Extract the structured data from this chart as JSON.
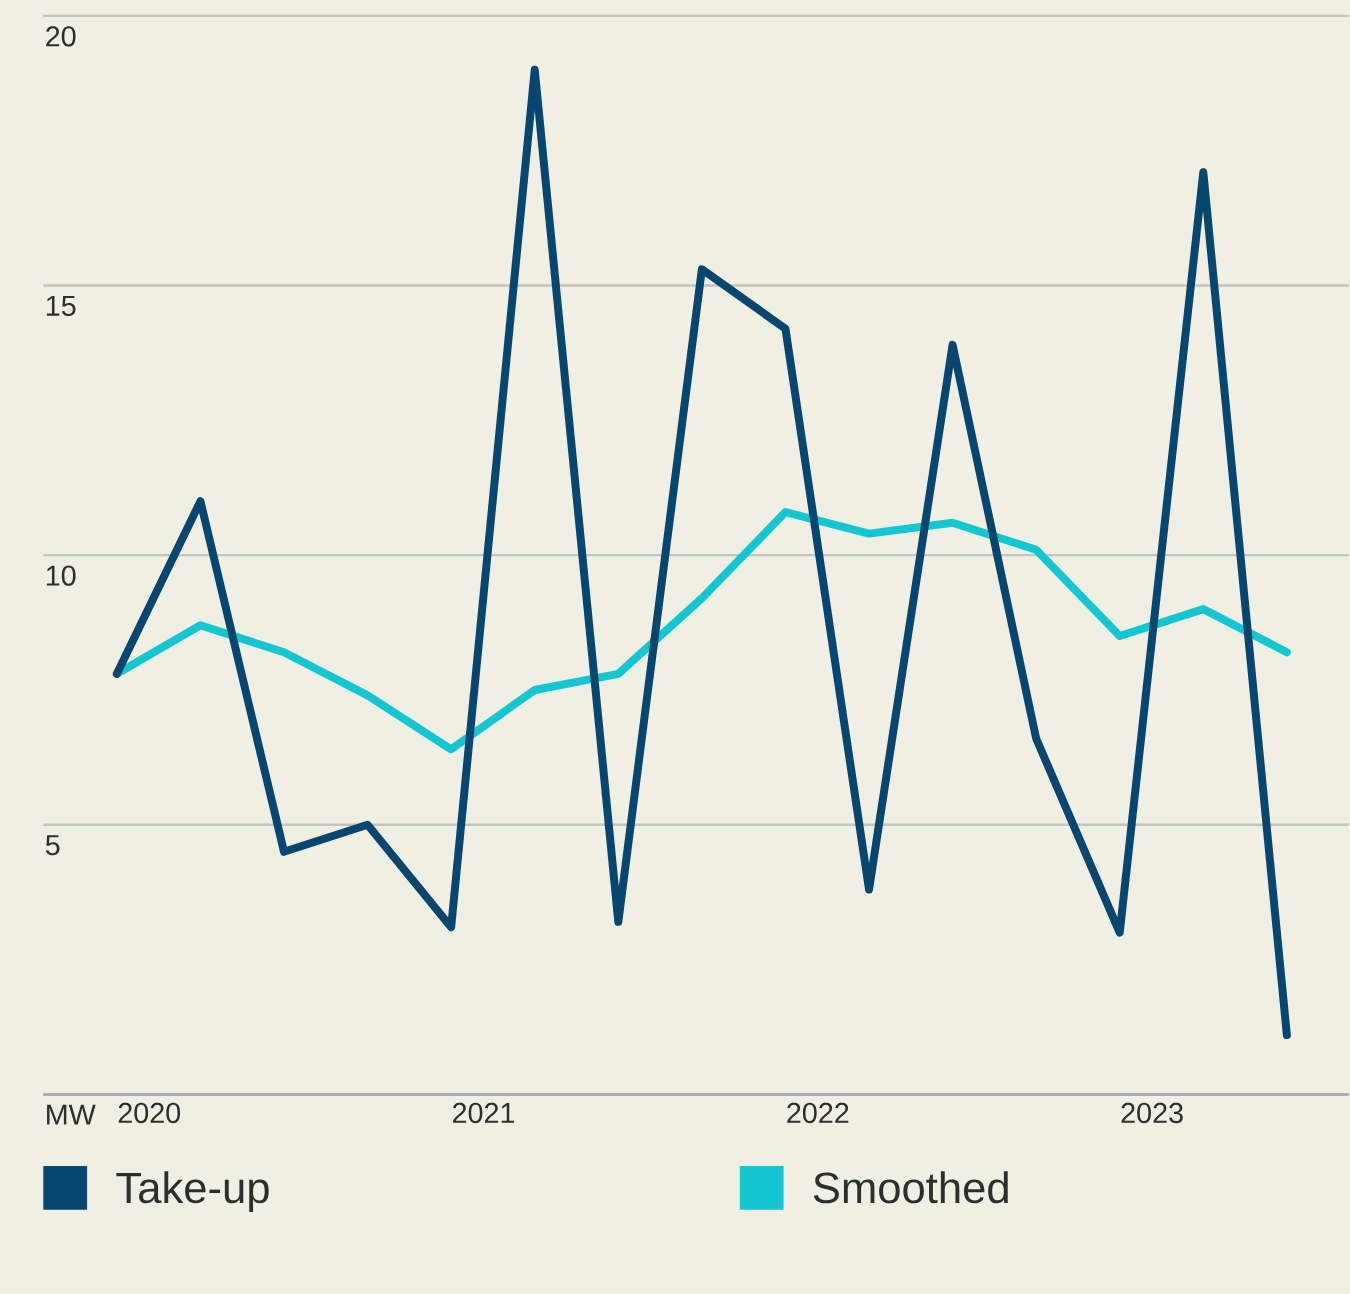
{
  "chart_data": {
    "type": "line",
    "categories": [
      "2020",
      null,
      null,
      null,
      "2021",
      null,
      null,
      null,
      "2022",
      null,
      null,
      null,
      "2023",
      null,
      null
    ],
    "series": [
      {
        "name": "Take-up",
        "color": "#07466e",
        "values": [
          7.8,
          11.0,
          4.5,
          5.0,
          3.1,
          19.0,
          3.2,
          15.3,
          14.2,
          3.8,
          13.9,
          6.6,
          3.0,
          17.1,
          1.1
        ]
      },
      {
        "name": "Smoothed",
        "color": "#12c6d2",
        "values": [
          7.8,
          8.7,
          8.2,
          7.4,
          6.4,
          7.5,
          7.8,
          9.2,
          10.8,
          10.4,
          10.6,
          10.1,
          8.5,
          9.0,
          8.2
        ]
      }
    ],
    "ylim": [
      0,
      20
    ],
    "yticks": [
      {
        "value": 0,
        "label": "MW"
      },
      5,
      10,
      15,
      20
    ],
    "grid": "y",
    "legend": "bottom",
    "line_style": "solid"
  }
}
